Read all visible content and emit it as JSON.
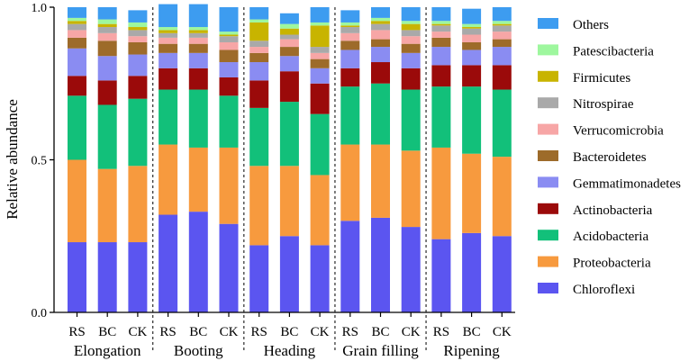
{
  "chart_data": {
    "type": "bar",
    "stacked": true,
    "ylabel": "Relative abundance",
    "ylim": [
      0,
      1.0
    ],
    "yticks": [
      "0.0",
      "0.5",
      "1.0"
    ],
    "legend_position": "right",
    "groups": [
      {
        "name": "Elongation",
        "treatments": [
          "RS",
          "BC",
          "CK"
        ]
      },
      {
        "name": "Booting",
        "treatments": [
          "RS",
          "BC",
          "CK"
        ]
      },
      {
        "name": "Heading",
        "treatments": [
          "RS",
          "BC",
          "CK"
        ]
      },
      {
        "name": "Grain filling",
        "treatments": [
          "RS",
          "BC",
          "CK"
        ]
      },
      {
        "name": "Ripening",
        "treatments": [
          "RS",
          "BC",
          "CK"
        ]
      }
    ],
    "categories": [
      "RS",
      "BC",
      "CK",
      "RS",
      "BC",
      "CK",
      "RS",
      "BC",
      "CK",
      "RS",
      "BC",
      "CK",
      "RS",
      "BC",
      "CK"
    ],
    "series": [
      {
        "name": "Chloroflexi",
        "color": "#5b55f0",
        "values": [
          0.23,
          0.23,
          0.23,
          0.32,
          0.33,
          0.29,
          0.22,
          0.25,
          0.22,
          0.3,
          0.31,
          0.28,
          0.24,
          0.26,
          0.25
        ]
      },
      {
        "name": "Proteobacteria",
        "color": "#f79a3e",
        "values": [
          0.27,
          0.24,
          0.25,
          0.23,
          0.21,
          0.25,
          0.26,
          0.23,
          0.23,
          0.25,
          0.24,
          0.25,
          0.3,
          0.26,
          0.26
        ]
      },
      {
        "name": "Acidobacteria",
        "color": "#12c07a",
        "values": [
          0.21,
          0.21,
          0.22,
          0.18,
          0.19,
          0.17,
          0.19,
          0.21,
          0.2,
          0.19,
          0.2,
          0.2,
          0.2,
          0.22,
          0.22
        ]
      },
      {
        "name": "Actinobacteria",
        "color": "#9b0a0a",
        "values": [
          0.065,
          0.08,
          0.075,
          0.07,
          0.07,
          0.06,
          0.09,
          0.1,
          0.1,
          0.06,
          0.07,
          0.07,
          0.07,
          0.07,
          0.08
        ]
      },
      {
        "name": "Gemmatimonadetes",
        "color": "#8a8cf2",
        "values": [
          0.09,
          0.08,
          0.07,
          0.05,
          0.05,
          0.05,
          0.06,
          0.05,
          0.05,
          0.06,
          0.05,
          0.05,
          0.06,
          0.05,
          0.06
        ]
      },
      {
        "name": "Bacteroidetes",
        "color": "#9d6b2a",
        "values": [
          0.035,
          0.05,
          0.04,
          0.03,
          0.03,
          0.04,
          0.03,
          0.03,
          0.03,
          0.03,
          0.025,
          0.03,
          0.03,
          0.025,
          0.025
        ]
      },
      {
        "name": "Verrucomicrobia",
        "color": "#f7a6a6",
        "values": [
          0.025,
          0.025,
          0.02,
          0.02,
          0.02,
          0.025,
          0.02,
          0.025,
          0.02,
          0.025,
          0.03,
          0.025,
          0.02,
          0.025,
          0.025
        ]
      },
      {
        "name": "Nitrospirae",
        "color": "#a9a9a9",
        "values": [
          0.02,
          0.02,
          0.02,
          0.015,
          0.015,
          0.02,
          0.02,
          0.015,
          0.02,
          0.02,
          0.02,
          0.02,
          0.02,
          0.02,
          0.02
        ]
      },
      {
        "name": "Firmicutes",
        "color": "#c8b400",
        "values": [
          0.01,
          0.01,
          0.01,
          0.01,
          0.01,
          0.005,
          0.06,
          0.02,
          0.07,
          0.005,
          0.01,
          0.02,
          0.005,
          0.005,
          0.005
        ]
      },
      {
        "name": "Patescibacteria",
        "color": "#9ef79e",
        "values": [
          0.01,
          0.015,
          0.015,
          0.01,
          0.01,
          0.01,
          0.01,
          0.015,
          0.01,
          0.01,
          0.01,
          0.01,
          0.01,
          0.01,
          0.01
        ]
      },
      {
        "name": "Others",
        "color": "#3d9cf0",
        "values": [
          0.035,
          0.04,
          0.04,
          0.075,
          0.075,
          0.08,
          0.04,
          0.035,
          0.05,
          0.04,
          0.035,
          0.045,
          0.045,
          0.05,
          0.045
        ]
      }
    ]
  }
}
